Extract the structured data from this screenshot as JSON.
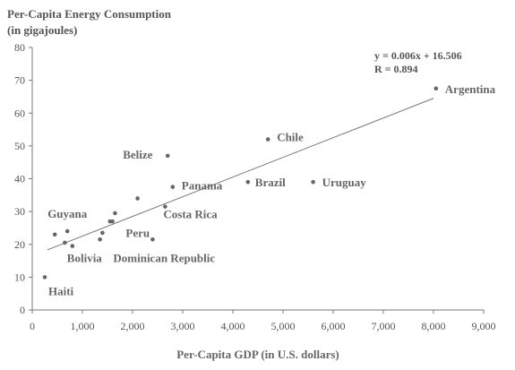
{
  "chart_data": {
    "type": "scatter",
    "title": "Per-Capita Energy Consumption",
    "subtitle": "(in gigajoules)",
    "xlabel": "Per-Capita GDP (in U.S. dollars)",
    "ylabel": "",
    "xlim": [
      0,
      9000
    ],
    "ylim": [
      0,
      80
    ],
    "x_ticks": [
      0,
      1000,
      2000,
      3000,
      4000,
      5000,
      6000,
      7000,
      8000,
      9000
    ],
    "x_tick_labels": [
      "0",
      "1,000",
      "2,000",
      "3,000",
      "4,000",
      "5,000",
      "6,000",
      "7,000",
      "8,000",
      "9,000"
    ],
    "y_ticks": [
      0,
      10,
      20,
      30,
      40,
      50,
      60,
      70,
      80
    ],
    "y_tick_labels": [
      "0",
      "10",
      "20",
      "30",
      "40",
      "50",
      "60",
      "70",
      "80"
    ],
    "grid": false,
    "legend": "none",
    "trendline": {
      "slope": 0.006,
      "intercept": 16.506,
      "x_range": [
        300,
        8000
      ],
      "equation_label": "y = 0.006x + 16.506",
      "r_label": "R = 0.894"
    },
    "points": [
      {
        "x": 250,
        "y": 10,
        "label": "Haiti"
      },
      {
        "x": 450,
        "y": 23,
        "label": ""
      },
      {
        "x": 650,
        "y": 20.5,
        "label": ""
      },
      {
        "x": 700,
        "y": 24,
        "label": "Guyana"
      },
      {
        "x": 800,
        "y": 19.5,
        "label": "Bolivia"
      },
      {
        "x": 1350,
        "y": 21.5,
        "label": ""
      },
      {
        "x": 1400,
        "y": 23.5,
        "label": ""
      },
      {
        "x": 1550,
        "y": 27,
        "label": ""
      },
      {
        "x": 1600,
        "y": 27,
        "label": ""
      },
      {
        "x": 1650,
        "y": 29.5,
        "label": ""
      },
      {
        "x": 2100,
        "y": 34,
        "label": ""
      },
      {
        "x": 2400,
        "y": 21.5,
        "label": "Dominican Republic"
      },
      {
        "x": 2650,
        "y": 31.5,
        "label": "Costa Rica"
      },
      {
        "x": 2700,
        "y": 47,
        "label": "Belize"
      },
      {
        "x": 2800,
        "y": 37.5,
        "label": "Panama"
      },
      {
        "x": 4300,
        "y": 39,
        "label": "Brazil"
      },
      {
        "x": 4700,
        "y": 52,
        "label": "Chile"
      },
      {
        "x": 5600,
        "y": 39,
        "label": "Uruguay"
      },
      {
        "x": 8050,
        "y": 67.5,
        "label": "Argentina"
      }
    ],
    "annotations": [
      {
        "text": "Peru",
        "x": 2400,
        "y": 21.5
      }
    ]
  },
  "colors": {
    "axis": "#777777",
    "text": "#555555",
    "marker": "#666666",
    "trendline": "#777777"
  }
}
